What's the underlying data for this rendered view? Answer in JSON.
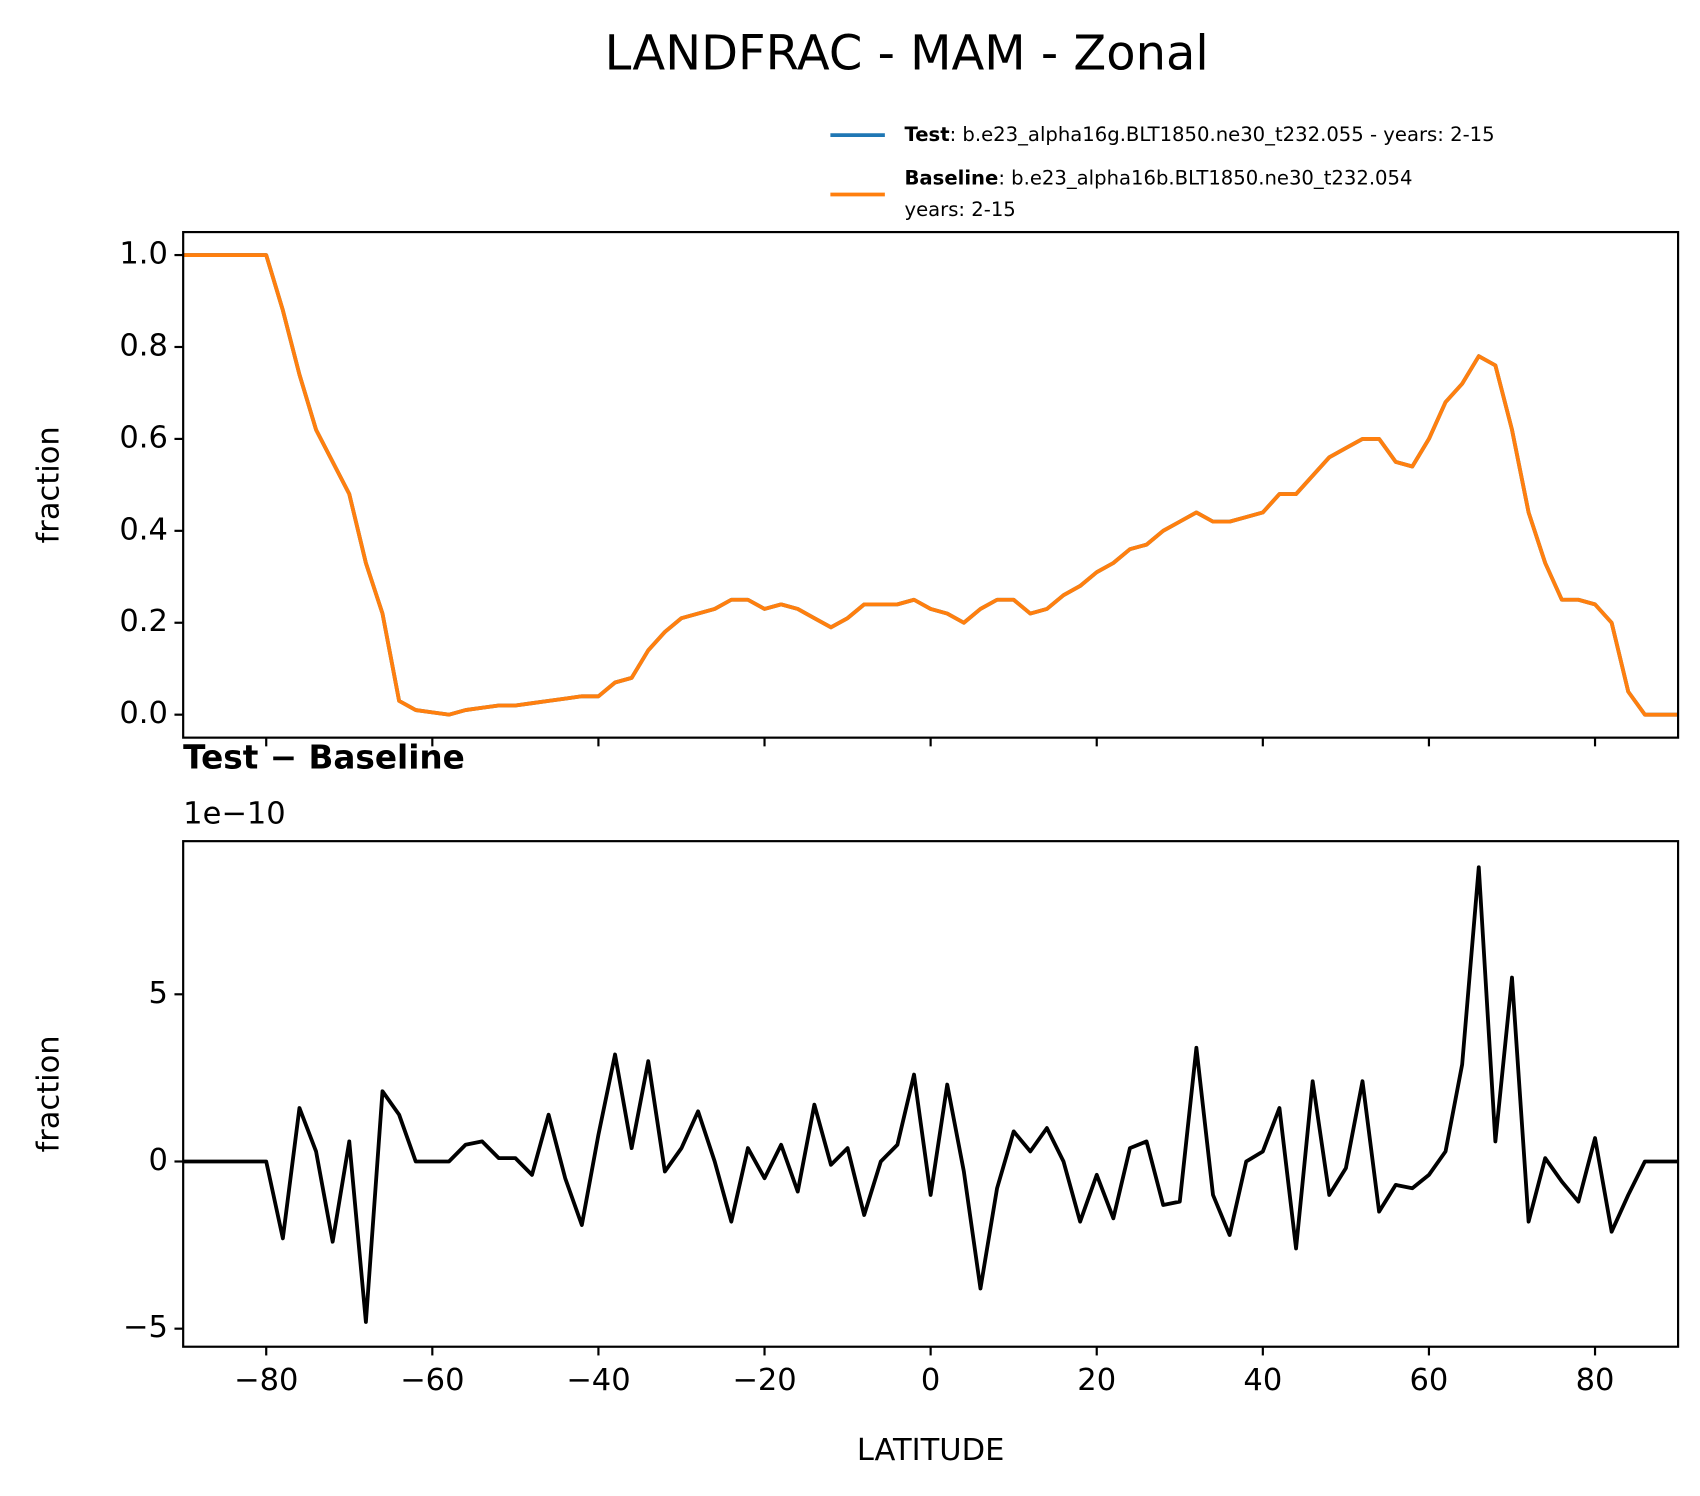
{
  "title": "LANDFRAC - MAM - Zonal",
  "chart_data": [
    {
      "type": "line",
      "ylabel": "fraction",
      "x": [
        -90,
        -88,
        -86,
        -84,
        -82,
        -80,
        -78,
        -76,
        -74,
        -72,
        -70,
        -68,
        -66,
        -64,
        -62,
        -60,
        -58,
        -56,
        -54,
        -52,
        -50,
        -48,
        -46,
        -44,
        -42,
        -40,
        -38,
        -36,
        -34,
        -32,
        -30,
        -28,
        -26,
        -24,
        -22,
        -20,
        -18,
        -16,
        -14,
        -12,
        -10,
        -8,
        -6,
        -4,
        -2,
        0,
        2,
        4,
        6,
        8,
        10,
        12,
        14,
        16,
        18,
        20,
        22,
        24,
        26,
        28,
        30,
        32,
        34,
        36,
        38,
        40,
        42,
        44,
        46,
        48,
        50,
        52,
        54,
        56,
        58,
        60,
        62,
        64,
        66,
        68,
        70,
        72,
        74,
        76,
        78,
        80,
        82,
        84,
        86,
        88,
        90
      ],
      "series": [
        {
          "name": "Test",
          "label_detail": [
            ": b.e23_alpha16g.BLT1850.ne30_t232.055 - years: 2-15"
          ],
          "color": "#1f77b4",
          "values": [
            1,
            1,
            1,
            1,
            1,
            1,
            0.88,
            0.74,
            0.62,
            0.55,
            0.48,
            0.33,
            0.22,
            0.03,
            0.01,
            0.005,
            0,
            0.01,
            0.015,
            0.02,
            0.02,
            0.025,
            0.03,
            0.035,
            0.04,
            0.04,
            0.07,
            0.08,
            0.14,
            0.18,
            0.21,
            0.22,
            0.23,
            0.25,
            0.25,
            0.23,
            0.24,
            0.23,
            0.21,
            0.19,
            0.21,
            0.24,
            0.24,
            0.24,
            0.25,
            0.23,
            0.22,
            0.2,
            0.23,
            0.25,
            0.25,
            0.22,
            0.23,
            0.26,
            0.28,
            0.31,
            0.33,
            0.36,
            0.37,
            0.4,
            0.42,
            0.44,
            0.42,
            0.42,
            0.43,
            0.44,
            0.48,
            0.48,
            0.52,
            0.56,
            0.58,
            0.6,
            0.6,
            0.55,
            0.54,
            0.6,
            0.68,
            0.72,
            0.78,
            0.76,
            0.62,
            0.44,
            0.33,
            0.25,
            0.25,
            0.24,
            0.2,
            0.05,
            0,
            0,
            0
          ]
        },
        {
          "name": "Baseline",
          "label_detail": [
            ": b.e23_alpha16b.BLT1850.ne30_t232.054",
            "years: 2-15"
          ],
          "color": "#ff7f0e",
          "values": [
            1,
            1,
            1,
            1,
            1,
            1,
            0.88,
            0.74,
            0.62,
            0.55,
            0.48,
            0.33,
            0.22,
            0.03,
            0.01,
            0.005,
            0,
            0.01,
            0.015,
            0.02,
            0.02,
            0.025,
            0.03,
            0.035,
            0.04,
            0.04,
            0.07,
            0.08,
            0.14,
            0.18,
            0.21,
            0.22,
            0.23,
            0.25,
            0.25,
            0.23,
            0.24,
            0.23,
            0.21,
            0.19,
            0.21,
            0.24,
            0.24,
            0.24,
            0.25,
            0.23,
            0.22,
            0.2,
            0.23,
            0.25,
            0.25,
            0.22,
            0.23,
            0.26,
            0.28,
            0.31,
            0.33,
            0.36,
            0.37,
            0.4,
            0.42,
            0.44,
            0.42,
            0.42,
            0.43,
            0.44,
            0.48,
            0.48,
            0.52,
            0.56,
            0.58,
            0.6,
            0.6,
            0.55,
            0.54,
            0.6,
            0.68,
            0.72,
            0.78,
            0.76,
            0.62,
            0.44,
            0.33,
            0.25,
            0.25,
            0.24,
            0.2,
            0.05,
            0,
            0,
            0
          ]
        }
      ],
      "xlim": [
        -90,
        90
      ],
      "ylim": [
        -0.05,
        1.05
      ],
      "xticks": [
        -80,
        -60,
        -40,
        -20,
        0,
        20,
        40,
        60,
        80
      ],
      "xtick_labels": false,
      "yticks": [
        {
          "value": 0,
          "label": "0.0"
        },
        {
          "value": 0.2,
          "label": "0.2"
        },
        {
          "value": 0.4,
          "label": "0.4"
        },
        {
          "value": 0.6,
          "label": "0.6"
        },
        {
          "value": 0.8,
          "label": "0.8"
        },
        {
          "value": 1,
          "label": "1.0"
        }
      ],
      "legend": "upper right outside"
    },
    {
      "type": "line",
      "title": "Test − Baseline",
      "offset_label": "1e−10",
      "xlabel": "LATITUDE",
      "ylabel": "fraction",
      "x": [
        -90,
        -88,
        -86,
        -84,
        -82,
        -80,
        -78,
        -76,
        -74,
        -72,
        -70,
        -68,
        -66,
        -64,
        -62,
        -60,
        -58,
        -56,
        -54,
        -52,
        -50,
        -48,
        -46,
        -44,
        -42,
        -40,
        -38,
        -36,
        -34,
        -32,
        -30,
        -28,
        -26,
        -24,
        -22,
        -20,
        -18,
        -16,
        -14,
        -12,
        -10,
        -8,
        -6,
        -4,
        -2,
        0,
        2,
        4,
        6,
        8,
        10,
        12,
        14,
        16,
        18,
        20,
        22,
        24,
        26,
        28,
        30,
        32,
        34,
        36,
        38,
        40,
        42,
        44,
        46,
        48,
        50,
        52,
        54,
        56,
        58,
        60,
        62,
        64,
        66,
        68,
        70,
        72,
        74,
        76,
        78,
        80,
        82,
        84,
        86,
        88,
        90
      ],
      "series": [
        {
          "color": "#000000",
          "values": [
            0,
            0,
            0,
            0,
            0,
            0,
            -2.3,
            1.6,
            0.3,
            -2.4,
            0.6,
            -4.8,
            2.1,
            1.4,
            0,
            0,
            0,
            0.5,
            0.6,
            0.1,
            0.1,
            -0.4,
            1.4,
            -0.5,
            -1.9,
            0.8,
            3.2,
            0.4,
            3.0,
            -0.3,
            0.4,
            1.5,
            0,
            -1.8,
            0.4,
            -0.5,
            0.5,
            -0.9,
            1.7,
            -0.1,
            0.4,
            -1.6,
            0,
            0.5,
            2.6,
            -1.0,
            2.3,
            -0.3,
            -3.8,
            -0.8,
            0.9,
            0.3,
            1.0,
            0,
            -1.8,
            -0.4,
            -1.7,
            0.4,
            0.6,
            -1.3,
            -1.2,
            3.4,
            -1.0,
            -2.2,
            0,
            0.3,
            1.6,
            -2.6,
            2.4,
            -1.0,
            -0.2,
            2.4,
            -1.5,
            -0.7,
            -0.8,
            -0.4,
            0.3,
            2.9,
            8.8,
            0.6,
            5.5,
            -1.8,
            0.1,
            -0.6,
            -1.2,
            0.7,
            -2.1,
            -1.0,
            0,
            0,
            0
          ]
        }
      ],
      "xlim": [
        -90,
        90
      ],
      "ylim": [
        -5.54,
        9.58
      ],
      "xticks": [
        {
          "value": -80,
          "label": "−80"
        },
        {
          "value": -60,
          "label": "−60"
        },
        {
          "value": -40,
          "label": "−40"
        },
        {
          "value": -20,
          "label": "−20"
        },
        0,
        20,
        40,
        60,
        80
      ],
      "xtick_labels": true,
      "yticks": [
        {
          "value": -5,
          "label": "−5"
        },
        0,
        5
      ]
    }
  ]
}
